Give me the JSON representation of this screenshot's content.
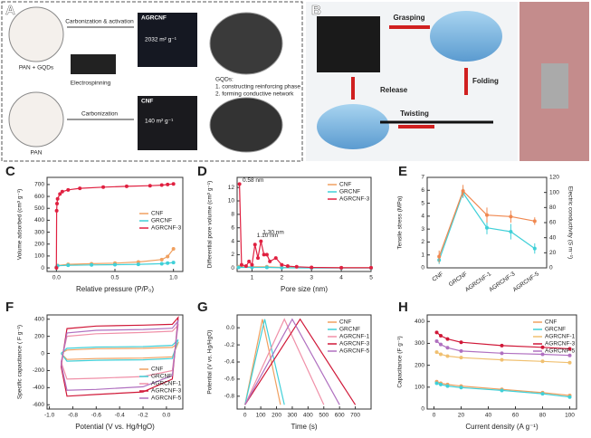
{
  "figure": {
    "panel_labels": [
      "A",
      "B",
      "C",
      "D",
      "E",
      "F",
      "G",
      "H"
    ],
    "panel_a": {
      "top_material": "PAN + GQDs",
      "top_process": "Carbonization & activation",
      "top_product": "AGRCNF",
      "top_area": "2032 m² g⁻¹",
      "gqds_title": "GQDs:",
      "gqds_1": "1. constructing reinforcing phase",
      "gqds_2": "2. forming conductive network",
      "spinning": "Electrospinning",
      "bottom_product": "CNF",
      "bottom_area": "140 m² g⁻¹",
      "bottom_process": "Carbonization",
      "bottom_material": "PAN"
    },
    "panel_b": {
      "grasping": "Grasping",
      "release": "Release",
      "folding": "Folding",
      "twisting": "Twisting"
    }
  },
  "chart_data": [
    {
      "type": "line",
      "xlabel": "Relative pressure (P/P₀)",
      "ylabel": "Volume adsorbed (cm³ g⁻¹)",
      "xlim": [
        -0.08,
        1.08
      ],
      "ylim": [
        -30,
        760
      ],
      "xticks": [
        {
          "value": 0,
          "label": "0.0"
        },
        {
          "value": 0.5,
          "label": "0.5"
        },
        {
          "value": 1,
          "label": "1.0"
        }
      ],
      "yticks": [
        0,
        100,
        200,
        300,
        400,
        500,
        600,
        700
      ],
      "legend": "center right",
      "markers": true,
      "series": [
        {
          "name": "CNF",
          "color": "#f0a060",
          "x": [
            0,
            0.01,
            0.1,
            0.3,
            0.5,
            0.7,
            0.9,
            0.95,
            1.0
          ],
          "values": [
            5,
            20,
            30,
            35,
            40,
            50,
            70,
            95,
            160
          ]
        },
        {
          "name": "GRCNF",
          "color": "#40d0d8",
          "x": [
            0,
            0.01,
            0.1,
            0.3,
            0.5,
            0.7,
            0.9,
            0.95,
            1.0
          ],
          "values": [
            5,
            18,
            22,
            25,
            27,
            30,
            35,
            40,
            45
          ]
        },
        {
          "name": "AGRCNF-3",
          "color": "#e02040",
          "x": [
            0,
            0.002,
            0.005,
            0.01,
            0.03,
            0.05,
            0.1,
            0.2,
            0.4,
            0.6,
            0.8,
            0.9,
            0.95,
            1.0
          ],
          "values": [
            0,
            480,
            540,
            580,
            620,
            640,
            655,
            668,
            678,
            685,
            690,
            695,
            700,
            705
          ]
        }
      ]
    },
    {
      "type": "line",
      "xlabel": "Pore size (nm)",
      "ylabel": "Differential pore volume (cm³ g⁻¹)",
      "xlim": [
        0.5,
        5
      ],
      "ylim": [
        -0.5,
        13.5
      ],
      "xticks": [
        1,
        2,
        3,
        4,
        5
      ],
      "yticks": [
        0,
        2,
        4,
        6,
        8,
        10,
        12
      ],
      "legend": "upper right",
      "markers": true,
      "annotations": [
        "0.58 nm",
        "1.10 nm",
        "1.30 nm"
      ],
      "series": [
        {
          "name": "CNF",
          "color": "#f0a060",
          "x": [
            0.55,
            1,
            1.5,
            2,
            3,
            4,
            5
          ],
          "values": [
            0.2,
            0.2,
            0.2,
            0.1,
            0.05,
            0.05,
            0.05
          ]
        },
        {
          "name": "GRCNF",
          "color": "#40d0d8",
          "x": [
            0.55,
            1,
            1.5,
            2,
            3,
            4,
            5
          ],
          "values": [
            0.1,
            0.1,
            0.1,
            0.05,
            0.03,
            0.03,
            0.03
          ]
        },
        {
          "name": "AGRCNF-3",
          "color": "#e02040",
          "x": [
            0.58,
            0.65,
            0.8,
            0.9,
            1.0,
            1.1,
            1.2,
            1.3,
            1.4,
            1.5,
            1.6,
            1.8,
            2.0,
            2.2,
            2.5,
            3,
            4,
            5
          ],
          "values": [
            12.5,
            0.5,
            0.3,
            1,
            0.5,
            3.5,
            1.5,
            4,
            2,
            2,
            1,
            1.5,
            0.5,
            0.3,
            0.2,
            0.1,
            0.05,
            0.05
          ]
        }
      ]
    },
    {
      "type": "line",
      "ylabel": "Tensile stress (MPa)",
      "y2label": "Electric conductivity (S m⁻¹)",
      "categories": [
        "CNF",
        "GRCNF",
        "AGRCNF-1",
        "AGRCNF-3",
        "AGRCNF-5"
      ],
      "ylim": [
        0,
        7
      ],
      "yticks": [
        0,
        1,
        2,
        3,
        4,
        5,
        6,
        7
      ],
      "y2lim": [
        0,
        120
      ],
      "y2ticks": [
        0,
        20,
        40,
        60,
        80,
        100,
        120
      ],
      "markers": true,
      "series": [
        {
          "name": "Tensile stress",
          "color": "#40d0d8",
          "values": [
            0.6,
            5.8,
            3.1,
            2.8,
            1.5
          ],
          "errors": [
            0.3,
            0.4,
            0.5,
            0.6,
            0.4
          ]
        },
        {
          "name": "Electric conductivity",
          "color": "#f08850",
          "axis": "y2",
          "values": [
            15,
            102,
            70,
            68,
            62
          ],
          "errors": [
            8,
            8,
            10,
            8,
            5
          ]
        }
      ]
    },
    {
      "type": "line",
      "xlabel": "Potential (V vs. Hg/HgO)",
      "ylabel": "Specific capacitance ( F g⁻¹)",
      "xlim": [
        -1.02,
        0.14
      ],
      "ylim": [
        -650,
        450
      ],
      "xticks": [
        {
          "value": -1,
          "label": "-1.0"
        },
        -0.8,
        -0.6,
        -0.4,
        -0.2,
        {
          "value": 0,
          "label": "0.0"
        }
      ],
      "yticks": [
        -600,
        -400,
        -200,
        0,
        200,
        400
      ],
      "legend": "lower right",
      "series": [
        {
          "name": "CNF",
          "color": "#f0a060",
          "x": [
            -0.9,
            -0.85,
            -0.6,
            -0.2,
            0.05,
            0.1,
            0.05,
            -0.2,
            -0.6,
            -0.85,
            -0.9
          ],
          "values": [
            0,
            40,
            55,
            60,
            70,
            120,
            -40,
            -55,
            -60,
            -70,
            0
          ]
        },
        {
          "name": "GRCNF",
          "color": "#40d0d8",
          "x": [
            -0.9,
            -0.85,
            -0.6,
            -0.2,
            0.05,
            0.1,
            0.05,
            -0.2,
            -0.6,
            -0.85,
            -0.9
          ],
          "values": [
            0,
            60,
            75,
            80,
            95,
            160,
            -60,
            -75,
            -80,
            -90,
            0
          ]
        },
        {
          "name": "AGRCNF-1",
          "color": "#f090a8",
          "x": [
            -0.9,
            -0.85,
            -0.6,
            -0.2,
            0.05,
            0.1,
            0.05,
            -0.2,
            -0.6,
            -0.85,
            -0.9
          ],
          "values": [
            -100,
            200,
            230,
            245,
            260,
            330,
            -200,
            -270,
            -290,
            -300,
            -100
          ]
        },
        {
          "name": "AGRCNF-3",
          "color": "#d01838",
          "x": [
            -0.9,
            -0.85,
            -0.6,
            -0.2,
            0.05,
            0.1,
            0.05,
            -0.2,
            -0.6,
            -0.85,
            -0.9
          ],
          "values": [
            -150,
            290,
            320,
            330,
            340,
            420,
            -300,
            -450,
            -480,
            -500,
            -150
          ]
        },
        {
          "name": "AGRCNF-5",
          "color": "#b070c0",
          "x": [
            -0.9,
            -0.85,
            -0.6,
            -0.2,
            0.05,
            0.1,
            0.05,
            -0.2,
            -0.6,
            -0.85,
            -0.9
          ],
          "values": [
            -120,
            240,
            270,
            280,
            295,
            380,
            -260,
            -390,
            -420,
            -430,
            -120
          ]
        }
      ]
    },
    {
      "type": "line",
      "xlabel": "Time (s)",
      "ylabel": "Potential (V vs. Hg/HgO)",
      "xlim": [
        -50,
        800
      ],
      "ylim": [
        -0.95,
        0.15
      ],
      "xticks": [
        0,
        100,
        200,
        300,
        400,
        500,
        600,
        700
      ],
      "yticks": [
        -0.8,
        -0.6,
        -0.4,
        -0.2,
        {
          "value": 0,
          "label": "0.0"
        }
      ],
      "legend": "upper right",
      "series": [
        {
          "name": "CNF",
          "color": "#f0a060",
          "x": [
            0,
            110,
            225
          ],
          "values": [
            -0.9,
            0.1,
            -0.9
          ]
        },
        {
          "name": "GRCNF",
          "color": "#40d0d8",
          "x": [
            0,
            125,
            250
          ],
          "values": [
            -0.9,
            0.1,
            -0.9
          ]
        },
        {
          "name": "AGRCNF-1",
          "color": "#f090a8",
          "x": [
            0,
            250,
            500
          ],
          "values": [
            -0.9,
            0.1,
            -0.9
          ]
        },
        {
          "name": "AGRCNF-3",
          "color": "#d01838",
          "x": [
            0,
            350,
            700
          ],
          "values": [
            -0.9,
            0.1,
            -0.9
          ]
        },
        {
          "name": "AGRCNF-5",
          "color": "#b070c0",
          "x": [
            0,
            300,
            600
          ],
          "values": [
            -0.9,
            0.1,
            -0.9
          ]
        }
      ]
    },
    {
      "type": "line",
      "xlabel": "Current density (A g⁻¹)",
      "ylabel": "Capacitance (F g⁻¹)",
      "xlim": [
        -5,
        105
      ],
      "ylim": [
        0,
        430
      ],
      "xticks": [
        0,
        20,
        40,
        60,
        80,
        100
      ],
      "yticks": [
        0,
        100,
        200,
        300,
        400
      ],
      "legend": "upper right",
      "markers": true,
      "series": [
        {
          "name": "CNF",
          "color": "#f0a060",
          "x": [
            2,
            5,
            10,
            20,
            50,
            80,
            100
          ],
          "values": [
            125,
            118,
            112,
            105,
            90,
            75,
            62
          ]
        },
        {
          "name": "GRCNF",
          "color": "#40d0d8",
          "x": [
            2,
            5,
            10,
            20,
            50,
            80,
            100
          ],
          "values": [
            118,
            112,
            105,
            98,
            85,
            70,
            55
          ]
        },
        {
          "name": "AGRCNF-1",
          "color": "#f0c070",
          "x": [
            2,
            5,
            10,
            20,
            50,
            80,
            100
          ],
          "values": [
            260,
            250,
            242,
            235,
            225,
            218,
            212
          ]
        },
        {
          "name": "AGRCNF-3",
          "color": "#d01838",
          "x": [
            2,
            5,
            10,
            20,
            50,
            80,
            100
          ],
          "values": [
            350,
            335,
            320,
            305,
            290,
            282,
            275
          ]
        },
        {
          "name": "AGRCNF-5",
          "color": "#b070c0",
          "x": [
            2,
            5,
            10,
            20,
            50,
            80,
            100
          ],
          "values": [
            310,
            295,
            280,
            265,
            255,
            250,
            245
          ]
        }
      ]
    }
  ]
}
